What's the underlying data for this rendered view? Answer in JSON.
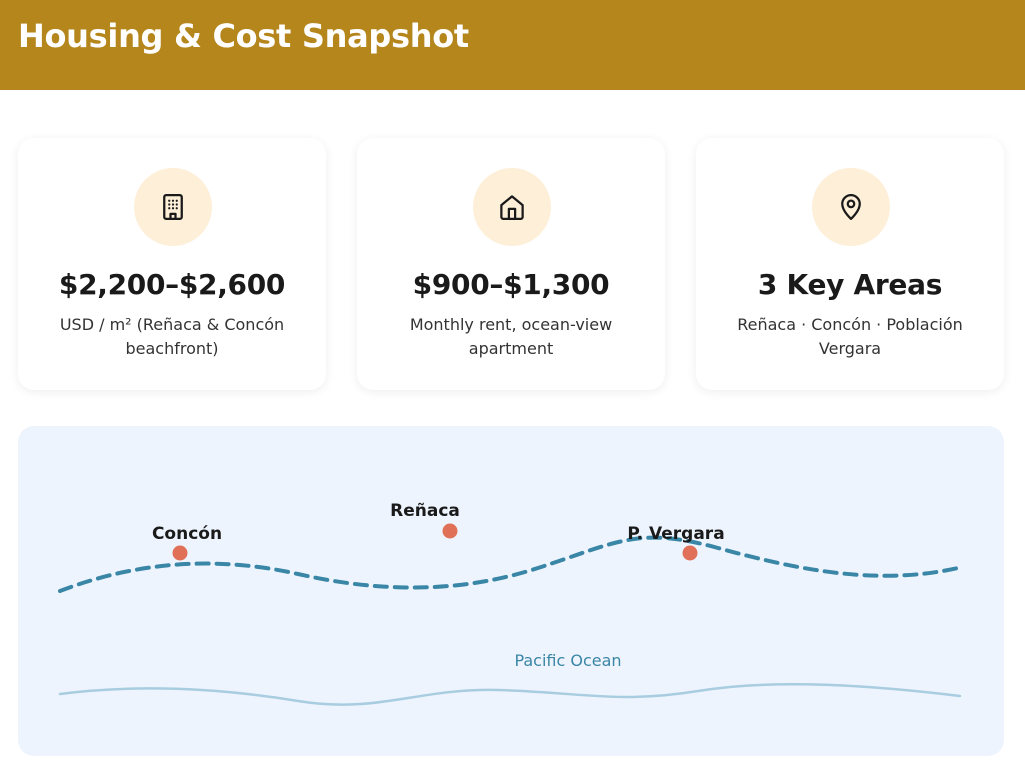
{
  "header": {
    "title": "Housing & Cost Snapshot"
  },
  "colors": {
    "header_bg": "#b5861c",
    "icon_bg": "#fdefd8",
    "map_bg": "#eef4fd",
    "coastline": "#3a86a6",
    "marker": "#e07057",
    "wave": "#a8cde0"
  },
  "cards": [
    {
      "icon": "building-icon",
      "value": "$2,200–$2,600",
      "desc": "USD / m² (Reñaca & Concón beachfront)"
    },
    {
      "icon": "home-icon",
      "value": "$900–$1,300",
      "desc": "Monthly rent, ocean-view apartment"
    },
    {
      "icon": "map-pin-icon",
      "value": "3 Key Areas",
      "desc": "Reñaca · Concón · Población Vergara"
    }
  ],
  "map": {
    "locations": [
      {
        "name": "Concón"
      },
      {
        "name": "Reñaca"
      },
      {
        "name": "P. Vergara"
      }
    ],
    "ocean_label": "Pacific Ocean"
  }
}
